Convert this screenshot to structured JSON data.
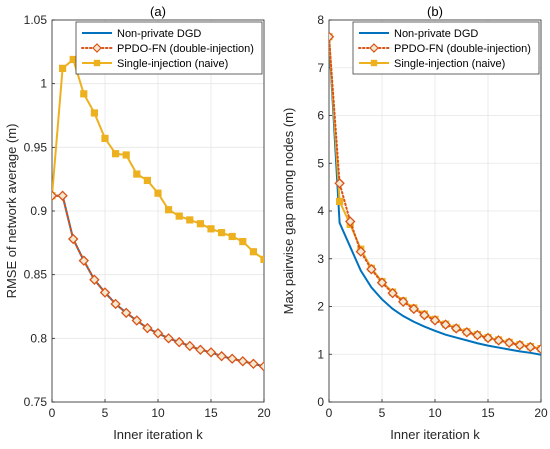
{
  "chart_data": [
    {
      "type": "line",
      "title": "(a)",
      "xlabel": "Inner iteration k",
      "ylabel": "RMSE of network average (m)",
      "xlim": [
        0,
        20
      ],
      "ylim": [
        0.75,
        1.05
      ],
      "xticks": [
        0,
        5,
        10,
        15,
        20
      ],
      "yticks": [
        0.75,
        0.8,
        0.85,
        0.9,
        0.95,
        1,
        1.05
      ],
      "ytick_labels": [
        "0.75",
        "0.8",
        "0.85",
        "0.9",
        "0.95",
        "1",
        "1.05"
      ],
      "grid": true,
      "legend": "top-right",
      "x": [
        0,
        1,
        2,
        3,
        4,
        5,
        6,
        7,
        8,
        9,
        10,
        11,
        12,
        13,
        14,
        15,
        16,
        17,
        18,
        19,
        20
      ],
      "series": [
        {
          "name": "Non-private DGD",
          "color": "#0072BD",
          "style": "solid",
          "marker": "none",
          "values": [
            0.912,
            0.912,
            0.878,
            0.861,
            0.846,
            0.836,
            0.827,
            0.82,
            0.814,
            0.808,
            0.804,
            0.8,
            0.797,
            0.794,
            0.791,
            0.789,
            0.786,
            0.784,
            0.782,
            0.78,
            0.778
          ]
        },
        {
          "name": "PPDO-FN (double-injection)",
          "color": "#D95319",
          "style": "dotted",
          "marker": "diamond",
          "values": [
            0.912,
            0.912,
            0.878,
            0.861,
            0.846,
            0.836,
            0.827,
            0.82,
            0.814,
            0.808,
            0.804,
            0.8,
            0.797,
            0.794,
            0.791,
            0.789,
            0.786,
            0.784,
            0.782,
            0.78,
            0.778
          ]
        },
        {
          "name": "Single-injection (naive)",
          "color": "#EDB120",
          "style": "solid",
          "marker": "square",
          "values": [
            0.912,
            1.012,
            1.019,
            0.992,
            0.977,
            0.957,
            0.945,
            0.944,
            0.929,
            0.924,
            0.914,
            0.901,
            0.896,
            0.893,
            0.89,
            0.886,
            0.883,
            0.88,
            0.876,
            0.868,
            0.862
          ]
        }
      ]
    },
    {
      "type": "line",
      "title": "(b)",
      "xlabel": "Inner iteration k",
      "ylabel": "Max pairwise gap among nodes (m)",
      "xlim": [
        0,
        20
      ],
      "ylim": [
        0,
        8
      ],
      "xticks": [
        0,
        5,
        10,
        15,
        20
      ],
      "yticks": [
        0,
        1,
        2,
        3,
        4,
        5,
        6,
        7,
        8
      ],
      "ytick_labels": [
        "0",
        "1",
        "2",
        "3",
        "4",
        "5",
        "6",
        "7",
        "8"
      ],
      "grid": true,
      "legend": "top-right",
      "x": [
        0,
        1,
        2,
        3,
        4,
        5,
        6,
        7,
        8,
        9,
        10,
        11,
        12,
        13,
        14,
        15,
        16,
        17,
        18,
        19,
        20
      ],
      "series": [
        {
          "name": "Non-private DGD",
          "color": "#0072BD",
          "style": "solid",
          "marker": "none",
          "values": [
            7.65,
            3.75,
            3.25,
            2.75,
            2.4,
            2.15,
            1.95,
            1.8,
            1.68,
            1.58,
            1.49,
            1.41,
            1.35,
            1.29,
            1.23,
            1.18,
            1.14,
            1.1,
            1.06,
            1.03,
            0.99
          ]
        },
        {
          "name": "PPDO-FN (double-injection)",
          "color": "#D95319",
          "style": "dotted",
          "marker": "diamond",
          "values": [
            7.65,
            4.58,
            3.78,
            3.15,
            2.78,
            2.5,
            2.28,
            2.1,
            1.95,
            1.82,
            1.71,
            1.62,
            1.54,
            1.46,
            1.4,
            1.34,
            1.29,
            1.24,
            1.19,
            1.15,
            1.11
          ]
        },
        {
          "name": "Single-injection (naive)",
          "color": "#EDB120",
          "style": "solid",
          "marker": "square",
          "values": [
            7.65,
            4.2,
            3.72,
            3.2,
            2.8,
            2.52,
            2.3,
            2.12,
            1.97,
            1.84,
            1.73,
            1.63,
            1.55,
            1.47,
            1.41,
            1.35,
            1.3,
            1.25,
            1.2,
            1.16,
            1.12
          ]
        }
      ]
    }
  ]
}
